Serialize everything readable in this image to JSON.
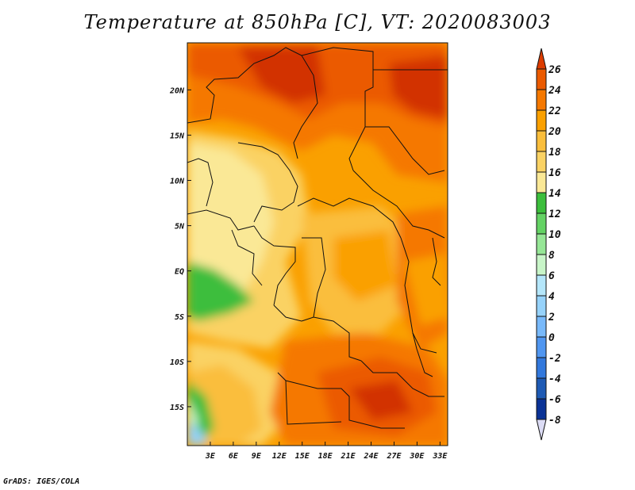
{
  "title": "Temperature at 850hPa [C], VT: 2020083003",
  "credit": "GrADS: IGES/COLA",
  "map": {
    "lon_range": [
      0,
      34
    ],
    "lat_range": [
      -19.3,
      25.2
    ],
    "x_ticks": [
      {
        "lon": 3,
        "label": "3E"
      },
      {
        "lon": 6,
        "label": "6E"
      },
      {
        "lon": 9,
        "label": "9E"
      },
      {
        "lon": 12,
        "label": "12E"
      },
      {
        "lon": 15,
        "label": "15E"
      },
      {
        "lon": 18,
        "label": "18E"
      },
      {
        "lon": 21,
        "label": "21E"
      },
      {
        "lon": 24,
        "label": "24E"
      },
      {
        "lon": 27,
        "label": "27E"
      },
      {
        "lon": 30,
        "label": "30E"
      },
      {
        "lon": 33,
        "label": "33E"
      }
    ],
    "y_ticks": [
      {
        "lat": 20,
        "label": "20N"
      },
      {
        "lat": 15,
        "label": "15N"
      },
      {
        "lat": 10,
        "label": "10N"
      },
      {
        "lat": 5,
        "label": "5N"
      },
      {
        "lat": 0,
        "label": "EQ"
      },
      {
        "lat": -5,
        "label": "5S"
      },
      {
        "lat": -10,
        "label": "10S"
      },
      {
        "lat": -15,
        "label": "15S"
      }
    ]
  },
  "colorbar": {
    "levels": [
      "26",
      "24",
      "22",
      "20",
      "18",
      "16",
      "14",
      "12",
      "10",
      "8",
      "6",
      "4",
      "2",
      "0",
      "-2",
      "-4",
      "-6",
      "-8"
    ],
    "colors": [
      "#dc3c00",
      "#eb5a00",
      "#f57800",
      "#faa000",
      "#fabe3c",
      "#fad264",
      "#fae896",
      "#3cbe3c",
      "#64d264",
      "#96e696",
      "#c8f5c8",
      "#b4e6fa",
      "#96d2fa",
      "#78b9fa",
      "#5096f0",
      "#3278dc",
      "#1e5ab4",
      "#0a3296",
      "#0a0a78"
    ],
    "top_color": "#dc3c00",
    "bottom_color": "#dcdcf5"
  },
  "colors": {
    "t26": "#d23200",
    "t24": "#eb5a00",
    "t22": "#f57800",
    "t20": "#faa000",
    "t18": "#fabe3c",
    "t16": "#fad264",
    "t14": "#fae896",
    "g12": "#3cbe3c",
    "g10": "#64d264",
    "g8": "#96e696",
    "g6": "#c8f5c8",
    "b": "#96d2fa"
  }
}
